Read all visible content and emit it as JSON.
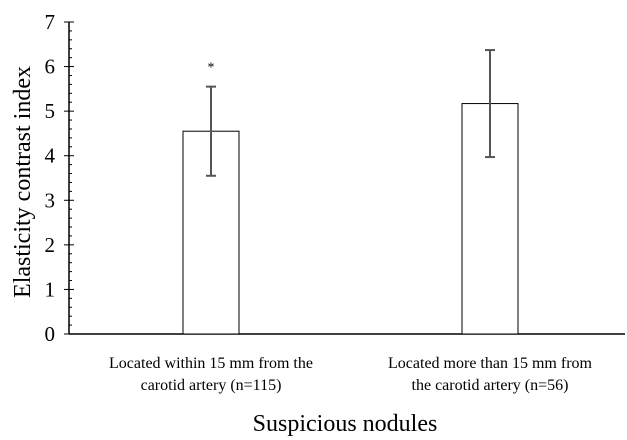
{
  "chart_data": {
    "type": "bar",
    "title": "",
    "ylabel": "Elasticity contrast index",
    "xlabel": "Suspicious nodules",
    "ylim": [
      0,
      7
    ],
    "yticks": [
      "0",
      "1",
      "2",
      "3",
      "4",
      "5",
      "6",
      "7"
    ],
    "minor_ticks_per_unit": 5,
    "categories": [
      {
        "line1": "Located within 15 mm from the",
        "line2": "carotid artery (n=115)"
      },
      {
        "line1": "Located more than 15 mm from",
        "line2": "the carotid artery (n=56)"
      }
    ],
    "values": [
      4.55,
      5.17
    ],
    "error": [
      1.0,
      1.2
    ],
    "annotations": [
      "*",
      ""
    ],
    "bar_fill": "#ffffff",
    "bar_stroke": "#000000",
    "error_bar_color": "#555555",
    "grid": false,
    "legend": "none"
  }
}
